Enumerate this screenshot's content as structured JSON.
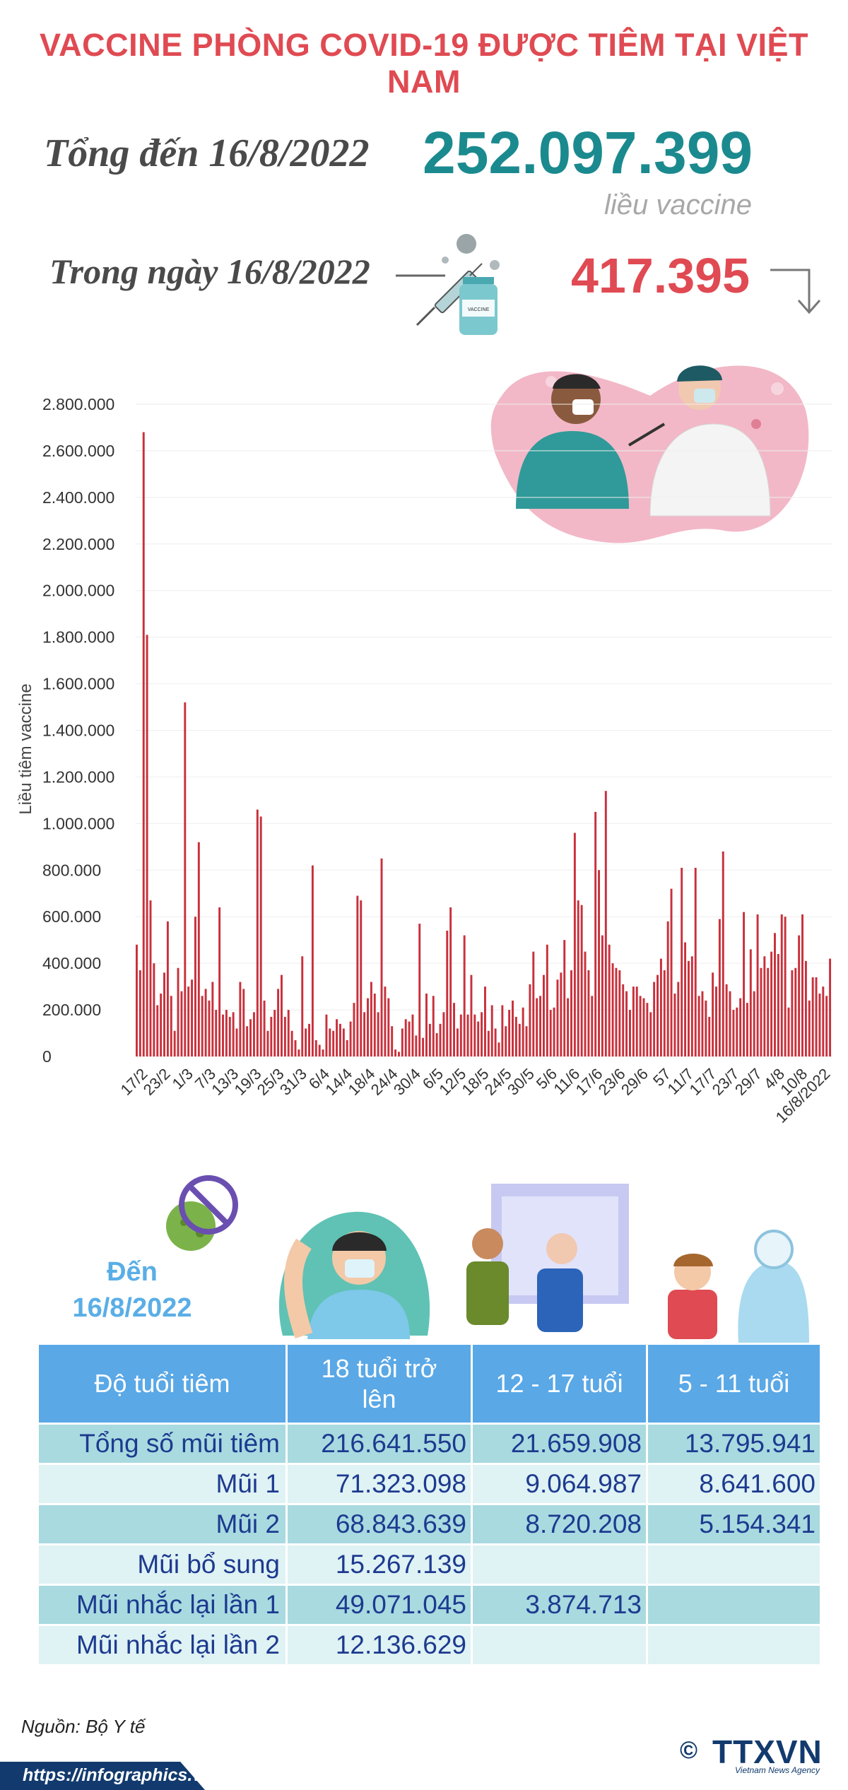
{
  "title": "VACCINE PHÒNG COVID-19 ĐƯỢC TIÊM TẠI VIỆT NAM",
  "summary": {
    "total_label": "Tổng đến 16/8/2022",
    "total_value": "252.097.399",
    "total_unit": "liều vaccine",
    "day_label": "Trong ngày 16/8/2022",
    "day_value": "417.395",
    "trend": "down-arrow-icon"
  },
  "chart_data": {
    "type": "bar",
    "ylabel": "Liều tiêm vaccine",
    "ylim": [
      0,
      2800000
    ],
    "ytick_labels": [
      "0",
      "200.000",
      "400.000",
      "600.000",
      "800.000",
      "1.000.000",
      "1.200.000",
      "1.400.000",
      "1.600.000",
      "1.800.000",
      "2.000.000",
      "2.200.000",
      "2.400.000",
      "2.600.000",
      "2.800.000"
    ],
    "xtick_labels": [
      "17/2",
      "23/2",
      "1/3",
      "7/3",
      "13/3",
      "19/3",
      "25/3",
      "31/3",
      "6/4",
      "14/4",
      "18/4",
      "24/4",
      "30/4",
      "6/5",
      "12/5",
      "18/5",
      "24/5",
      "30/5",
      "5/6",
      "11/6",
      "17/6",
      "23/6",
      "29/6",
      "57",
      "11/7",
      "17/7",
      "23/7",
      "29/7",
      "4/8",
      "10/8",
      "16/8/2022"
    ],
    "bar_color": "#c8303b",
    "values": [
      480000,
      370000,
      2680000,
      1810000,
      670000,
      400000,
      220000,
      270000,
      360000,
      580000,
      260000,
      110000,
      380000,
      280000,
      1520000,
      300000,
      330000,
      600000,
      920000,
      260000,
      290000,
      240000,
      320000,
      200000,
      640000,
      180000,
      200000,
      170000,
      190000,
      120000,
      320000,
      290000,
      130000,
      160000,
      190000,
      1060000,
      1030000,
      240000,
      110000,
      170000,
      200000,
      290000,
      350000,
      170000,
      200000,
      110000,
      70000,
      30000,
      430000,
      120000,
      140000,
      820000,
      70000,
      50000,
      30000,
      180000,
      120000,
      110000,
      160000,
      140000,
      120000,
      70000,
      150000,
      230000,
      690000,
      670000,
      190000,
      250000,
      320000,
      270000,
      190000,
      850000,
      300000,
      250000,
      130000,
      30000,
      20000,
      120000,
      160000,
      150000,
      180000,
      90000,
      570000,
      80000,
      270000,
      140000,
      260000,
      100000,
      140000,
      190000,
      540000,
      640000,
      230000,
      120000,
      180000,
      520000,
      180000,
      350000,
      180000,
      150000,
      190000,
      300000,
      110000,
      220000,
      120000,
      60000,
      220000,
      130000,
      200000,
      240000,
      170000,
      140000,
      210000,
      130000,
      310000,
      450000,
      250000,
      260000,
      350000,
      480000,
      200000,
      210000,
      330000,
      360000,
      500000,
      250000,
      370000,
      960000,
      670000,
      650000,
      450000,
      370000,
      260000,
      1050000,
      800000,
      520000,
      1140000,
      480000,
      400000,
      380000,
      370000,
      310000,
      280000,
      200000,
      300000,
      300000,
      260000,
      250000,
      230000,
      190000,
      320000,
      350000,
      420000,
      370000,
      580000,
      720000,
      270000,
      320000,
      810000,
      490000,
      410000,
      430000,
      810000,
      260000,
      280000,
      240000,
      170000,
      360000,
      300000,
      590000,
      880000,
      310000,
      280000,
      200000,
      210000,
      250000,
      620000,
      230000,
      460000,
      280000,
      610000,
      380000,
      430000,
      380000,
      450000,
      530000,
      440000,
      610000,
      600000,
      210000,
      370000,
      380000,
      520000,
      610000,
      410000,
      240000,
      340000,
      340000,
      270000,
      300000,
      260000,
      420000
    ],
    "note_last": "16/8/2022"
  },
  "age_section": {
    "date_label": "Đến 16/8/2022",
    "columns": [
      "Độ tuổi tiêm",
      "18 tuổi trở lên",
      "12 - 17 tuổi",
      "5 - 11 tuổi"
    ],
    "rows": [
      {
        "label": "Tổng số mũi tiêm",
        "values": [
          "216.641.550",
          "21.659.908",
          "13.795.941"
        ]
      },
      {
        "label": "Mũi 1",
        "values": [
          "71.323.098",
          "9.064.987",
          "8.641.600"
        ]
      },
      {
        "label": "Mũi 2",
        "values": [
          "68.843.639",
          "8.720.208",
          "5.154.341"
        ]
      },
      {
        "label": "Mũi bổ sung",
        "values": [
          "15.267.139",
          "",
          ""
        ]
      },
      {
        "label": "Mũi nhắc lại lần 1",
        "values": [
          "49.071.045",
          "3.874.713",
          ""
        ]
      },
      {
        "label": "Mũi nhắc lại lần 2",
        "values": [
          "12.136.629",
          "",
          ""
        ]
      }
    ]
  },
  "footer": {
    "source": "Nguồn: Bộ Y tế",
    "url": "https://infographics.vn",
    "copyright": "©",
    "brand": "TTXVN",
    "brand_sub": "Vietnam News Agency"
  }
}
